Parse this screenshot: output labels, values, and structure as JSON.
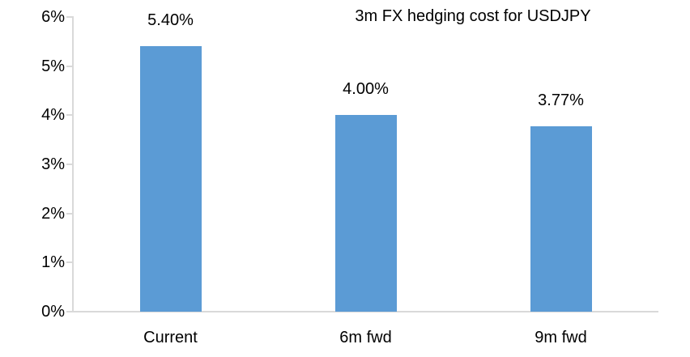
{
  "chart_data": {
    "type": "bar",
    "title": "3m FX hedging cost for USDJPY",
    "categories": [
      "Current",
      "6m fwd",
      "9m fwd"
    ],
    "values": [
      5.4,
      4.0,
      3.77
    ],
    "value_labels": [
      "5.40%",
      "4.00%",
      "3.77%"
    ],
    "xlabel": "",
    "ylabel": "",
    "ylim": [
      0,
      6
    ],
    "ytick_values": [
      0,
      1,
      2,
      3,
      4,
      5,
      6
    ],
    "ytick_labels": [
      "0%",
      "1%",
      "2%",
      "3%",
      "4%",
      "5%",
      "6%"
    ],
    "legend_position": "none",
    "grid": "off",
    "colors": {
      "bar": "#5b9bd5",
      "axis": "#d9d9d9",
      "text": "#000000",
      "background": "#ffffff"
    }
  }
}
